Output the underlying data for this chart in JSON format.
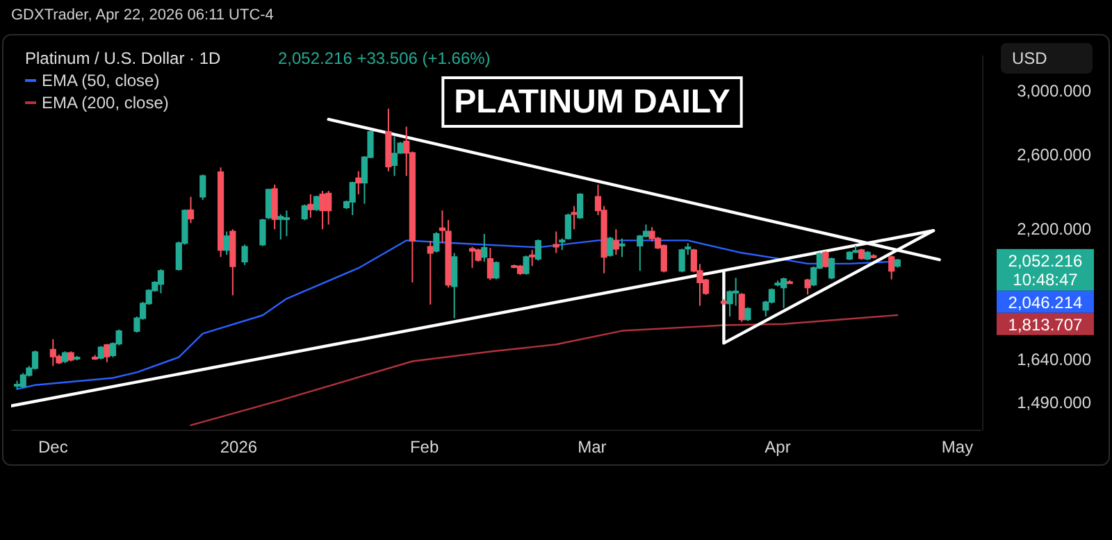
{
  "chart_data": {
    "type": "candlestick",
    "title": "Platinum / U.S. Dollar · 1D",
    "subtitle": "2,052.216 +33.506 (+1.66%)",
    "ylabel": "USD",
    "log": "y",
    "legend": "top left",
    "annotations": [
      "GDXTrader, Apr 22, 2026 06:11 UTC-4",
      "PLATINUM DAILY",
      "2,052.216",
      "10:48:47",
      "2,046.214",
      "1,813.707"
    ],
    "xlim": [
      "2025-11-24",
      "2026-05-05"
    ],
    "xticks": [
      {
        "value": "2025-12-01",
        "label": "Dec"
      },
      {
        "value": "2026-01-01",
        "label": "2026"
      },
      {
        "value": "2026-02-01",
        "label": "Feb"
      },
      {
        "value": "2026-03-01",
        "label": "Mar"
      },
      {
        "value": "2026-04-01",
        "label": "Apr"
      },
      {
        "value": "2026-05-01",
        "label": "May"
      }
    ],
    "ylim": [
      1400,
      3250
    ],
    "yticks": [
      {
        "value": 1490,
        "label": "1,490.000"
      },
      {
        "value": 1640,
        "label": "1,640.000"
      },
      {
        "value": 2200,
        "label": "2,200.000"
      },
      {
        "value": 2600,
        "label": "2,600.000"
      },
      {
        "value": 3000,
        "label": "3,000.000"
      }
    ],
    "x": [
      "2025-11-25",
      "2025-11-26",
      "2025-11-27",
      "2025-11-28",
      "2025-12-01",
      "2025-12-02",
      "2025-12-03",
      "2025-12-04",
      "2025-12-05",
      "2025-12-08",
      "2025-12-09",
      "2025-12-10",
      "2025-12-11",
      "2025-12-12",
      "2025-12-15",
      "2025-12-16",
      "2025-12-17",
      "2025-12-18",
      "2025-12-19",
      "2025-12-22",
      "2025-12-23",
      "2025-12-24",
      "2025-12-26",
      "2025-12-29",
      "2025-12-30",
      "2025-12-31",
      "2026-01-02",
      "2026-01-05",
      "2026-01-06",
      "2026-01-07",
      "2026-01-08",
      "2026-01-09",
      "2026-01-12",
      "2026-01-13",
      "2026-01-14",
      "2026-01-15",
      "2026-01-16",
      "2026-01-19",
      "2026-01-20",
      "2026-01-21",
      "2026-01-22",
      "2026-01-23",
      "2026-01-26",
      "2026-01-27",
      "2026-01-28",
      "2026-01-29",
      "2026-01-30",
      "2026-02-02",
      "2026-02-03",
      "2026-02-04",
      "2026-02-05",
      "2026-02-06",
      "2026-02-09",
      "2026-02-10",
      "2026-02-11",
      "2026-02-12",
      "2026-02-13",
      "2026-02-16",
      "2026-02-17",
      "2026-02-18",
      "2026-02-19",
      "2026-02-20",
      "2026-02-23",
      "2026-02-24",
      "2026-02-25",
      "2026-02-26",
      "2026-02-27",
      "2026-03-02",
      "2026-03-03",
      "2026-03-04",
      "2026-03-05",
      "2026-03-06",
      "2026-03-09",
      "2026-03-10",
      "2026-03-11",
      "2026-03-12",
      "2026-03-13",
      "2026-03-16",
      "2026-03-17",
      "2026-03-18",
      "2026-03-19",
      "2026-03-20",
      "2026-03-23",
      "2026-03-24",
      "2026-03-25",
      "2026-03-26",
      "2026-03-27",
      "2026-03-30",
      "2026-03-31",
      "2026-04-01",
      "2026-04-02",
      "2026-04-03",
      "2026-04-06",
      "2026-04-07",
      "2026-04-08",
      "2026-04-09",
      "2026-04-10",
      "2026-04-13",
      "2026-04-14",
      "2026-04-15",
      "2026-04-16",
      "2026-04-17",
      "2026-04-20",
      "2026-04-21"
    ],
    "ohlc": [
      [
        1548,
        1565,
        1535,
        1552
      ],
      [
        1545,
        1592,
        1540,
        1585
      ],
      [
        1585,
        1618,
        1580,
        1610
      ],
      [
        1610,
        1675,
        1605,
        1669
      ],
      [
        1678,
        1718,
        1618,
        1652
      ],
      [
        1652,
        1660,
        1625,
        1630
      ],
      [
        1635,
        1672,
        1628,
        1666
      ],
      [
        1666,
        1672,
        1635,
        1640
      ],
      [
        1645,
        1655,
        1638,
        1649
      ],
      [
        1649,
        1658,
        1640,
        1646
      ],
      [
        1647,
        1692,
        1642,
        1687
      ],
      [
        1696,
        1700,
        1632,
        1652
      ],
      [
        1657,
        1706,
        1650,
        1701
      ],
      [
        1701,
        1756,
        1695,
        1750
      ],
      [
        1750,
        1808,
        1744,
        1801
      ],
      [
        1801,
        1868,
        1795,
        1862
      ],
      [
        1862,
        1922,
        1856,
        1917
      ],
      [
        1917,
        1958,
        1912,
        1952
      ],
      [
        1945,
        2010,
        1905,
        2003
      ],
      [
        2010,
        2140,
        2005,
        2132
      ],
      [
        2132,
        2300,
        2125,
        2294
      ],
      [
        2296,
        2366,
        2230,
        2253
      ],
      [
        2366,
        2487,
        2350,
        2480
      ],
      [
        2501,
        2527,
        2067,
        2099
      ],
      [
        2099,
        2189,
        2077,
        2166
      ],
      [
        2189,
        2200,
        1896,
        2024
      ],
      [
        2045,
        2125,
        2030,
        2115
      ],
      [
        2125,
        2252,
        2118,
        2246
      ],
      [
        2258,
        2410,
        2250,
        2404
      ],
      [
        2408,
        2432,
        2200,
        2250
      ],
      [
        2250,
        2275,
        2150,
        2262
      ],
      [
        2250,
        2294,
        2166,
        2256
      ],
      [
        2253,
        2325,
        2245,
        2318
      ],
      [
        2325,
        2379,
        2258,
        2300
      ],
      [
        2300,
        2372,
        2292,
        2366
      ],
      [
        2379,
        2398,
        2200,
        2294
      ],
      [
        2384,
        2398,
        2223,
        2294
      ],
      [
        2310,
        2346,
        2302,
        2340
      ],
      [
        2340,
        2448,
        2270,
        2442
      ],
      [
        2467,
        2506,
        2379,
        2442
      ],
      [
        2442,
        2592,
        2330,
        2586
      ],
      [
        2586,
        2745,
        2580,
        2738
      ],
      [
        2738,
        2885,
        2506,
        2532
      ],
      [
        2540,
        2710,
        2480,
        2607
      ],
      [
        2612,
        2676,
        2605,
        2668
      ],
      [
        2680,
        2770,
        2480,
        2612
      ],
      [
        2612,
        2620,
        1952,
        2143
      ],
      [
        2115,
        2143,
        1857,
        2085
      ],
      [
        2095,
        2185,
        2088,
        2177
      ],
      [
        2205,
        2294,
        2132,
        2195
      ],
      [
        2189,
        2246,
        1930,
        1942
      ],
      [
        1935,
        2085,
        1801,
        2067
      ],
      [
        2105,
        2115,
        2017,
        2095
      ],
      [
        2099,
        2106,
        2045,
        2052
      ],
      [
        2067,
        2177,
        2045,
        2110
      ],
      [
        2058,
        2110,
        1962,
        1972
      ],
      [
        1972,
        2046,
        1966,
        2040
      ],
      [
        2026,
        2032,
        2015,
        2024
      ],
      [
        2024,
        2030,
        1985,
        1992
      ],
      [
        1992,
        2073,
        1986,
        2067
      ],
      [
        2075,
        2099,
        2025,
        2070
      ],
      [
        2058,
        2150,
        2050,
        2143
      ],
      [
        2125,
        2189,
        2085,
        2115
      ],
      [
        2140,
        2155,
        2099,
        2146
      ],
      [
        2155,
        2278,
        2150,
        2270
      ],
      [
        2283,
        2318,
        2200,
        2279
      ],
      [
        2258,
        2386,
        2252,
        2379
      ],
      [
        2366,
        2432,
        2270,
        2294
      ],
      [
        2294,
        2318,
        1992,
        2067
      ],
      [
        2075,
        2162,
        2068,
        2155
      ],
      [
        2143,
        2200,
        2077,
        2105
      ],
      [
        2120,
        2155,
        2067,
        2127
      ],
      [
        2120,
        2172,
        2003,
        2166
      ],
      [
        2166,
        2223,
        2160,
        2189
      ],
      [
        2189,
        2210,
        2140,
        2155
      ],
      [
        2155,
        2162,
        2104,
        2110
      ],
      [
        2120,
        2126,
        1996,
        2003
      ],
      [
        2003,
        2106,
        1997,
        2099
      ],
      [
        2108,
        2132,
        2077,
        2112
      ],
      [
        2099,
        2105,
        1997,
        2003
      ],
      [
        2003,
        2035,
        1852,
        1952
      ],
      [
        1962,
        1968,
        1898,
        1905
      ],
      [
        1870,
        1880,
        1855,
        1866
      ],
      [
        1862,
        1918,
        1808,
        1911
      ],
      [
        1908,
        1972,
        1852,
        1913
      ],
      [
        1900,
        1906,
        1786,
        1796
      ],
      [
        1796,
        1846,
        1790,
        1840
      ],
      [
        1835,
        1873,
        1808,
        1867
      ],
      [
        1868,
        1926,
        1862,
        1920
      ],
      [
        1945,
        1960,
        1935,
        1948
      ],
      [
        1930,
        1973,
        1843,
        1967
      ],
      [
        1954,
        1962,
        1945,
        1952
      ],
      [
        1962,
        1968,
        1900,
        1930
      ],
      [
        1942,
        2023,
        1936,
        2017
      ],
      [
        2017,
        2088,
        2011,
        2082
      ],
      [
        2088,
        2094,
        2018,
        2024
      ],
      [
        1972,
        2064,
        1966,
        2058
      ],
      [
        2058,
        2094,
        2052,
        2088
      ],
      [
        2090,
        2120,
        2085,
        2096
      ],
      [
        2099,
        2105,
        2054,
        2060
      ],
      [
        2058,
        2094,
        2052,
        2088
      ],
      [
        2072,
        2080,
        2060,
        2068
      ],
      [
        2067,
        2073,
        1965,
        2003
      ],
      [
        2025,
        2058,
        2018,
        2052.216
      ]
    ],
    "colors": [
      "#22ab94",
      "#22ab94",
      "#22ab94",
      "#22ab94",
      "#f7525f",
      "#f7525f",
      "#22ab94",
      "#f7525f",
      "#22ab94",
      "#f7525f",
      "#22ab94",
      "#f7525f",
      "#22ab94",
      "#22ab94",
      "#22ab94",
      "#22ab94",
      "#22ab94",
      "#22ab94",
      "#22ab94",
      "#22ab94",
      "#22ab94",
      "#f7525f",
      "#22ab94",
      "#f7525f",
      "#22ab94",
      "#f7525f",
      "#22ab94",
      "#22ab94",
      "#22ab94",
      "#f7525f",
      "#22ab94",
      "#22ab94",
      "#22ab94",
      "#f7525f",
      "#22ab94",
      "#f7525f",
      "#f7525f",
      "#22ab94",
      "#22ab94",
      "#f7525f",
      "#22ab94",
      "#22ab94",
      "#f7525f",
      "#22ab94",
      "#22ab94",
      "#f7525f",
      "#f7525f",
      "#f7525f",
      "#22ab94",
      "#f7525f",
      "#f7525f",
      "#22ab94",
      "#f7525f",
      "#f7525f",
      "#22ab94",
      "#f7525f",
      "#22ab94",
      "#f7525f",
      "#f7525f",
      "#22ab94",
      "#f7525f",
      "#22ab94",
      "#f7525f",
      "#22ab94",
      "#22ab94",
      "#f7525f",
      "#22ab94",
      "#f7525f",
      "#f7525f",
      "#22ab94",
      "#f7525f",
      "#22ab94",
      "#22ab94",
      "#22ab94",
      "#f7525f",
      "#f7525f",
      "#f7525f",
      "#22ab94",
      "#22ab94",
      "#f7525f",
      "#f7525f",
      "#f7525f",
      "#f7525f",
      "#22ab94",
      "#22ab94",
      "#f7525f",
      "#22ab94",
      "#22ab94",
      "#22ab94",
      "#22ab94",
      "#22ab94",
      "#f7525f",
      "#f7525f",
      "#22ab94",
      "#22ab94",
      "#f7525f",
      "#22ab94",
      "#22ab94",
      "#22ab94",
      "#f7525f",
      "#22ab94",
      "#f7525f",
      "#f7525f",
      "#22ab94"
    ],
    "series": [
      {
        "type": "line",
        "name": "EMA (50, close)",
        "color": "#2962ff",
        "x": [
          "2025-11-25",
          "2025-11-28",
          "2025-12-11",
          "2025-12-15",
          "2025-12-22",
          "2025-12-26",
          "2026-01-05",
          "2026-01-09",
          "2026-01-21",
          "2026-01-29",
          "2026-02-06",
          "2026-02-20",
          "2026-03-02",
          "2026-03-17",
          "2026-03-26",
          "2026-04-01",
          "2026-04-06",
          "2026-04-13",
          "2026-04-21"
        ],
        "values": [
          1536,
          1550,
          1575,
          1595,
          1650,
          1740,
          1813,
          1882,
          2016,
          2145,
          2132,
          2112,
          2145,
          2145,
          2086,
          2060,
          2036,
          2036,
          2046.214
        ]
      },
      {
        "type": "line",
        "name": "EMA (200, close)",
        "color": "#b2323f",
        "x": [
          "2025-12-24",
          "2026-01-08",
          "2026-01-30",
          "2026-02-12",
          "2026-02-23",
          "2026-03-06",
          "2026-03-23",
          "2026-04-02",
          "2026-04-21"
        ],
        "values": [
          1416,
          1498,
          1635,
          1671,
          1698,
          1751,
          1773,
          1778,
          1813.707
        ]
      },
      {
        "type": "line",
        "color": "#ffffff",
        "x": [
          "2026-01-16",
          "2026-04-28"
        ],
        "values": [
          2816,
          2054
        ]
      },
      {
        "type": "line",
        "color": "#ffffff",
        "x": [
          "2025-11-24",
          "2026-04-27"
        ],
        "values": [
          1479,
          2193
        ]
      },
      {
        "type": "line",
        "color": "#ffffff",
        "x": [
          "2026-03-23",
          "2026-03-23",
          "2026-04-27"
        ],
        "values": [
          1997,
          1703,
          2193
        ]
      }
    ]
  }
}
